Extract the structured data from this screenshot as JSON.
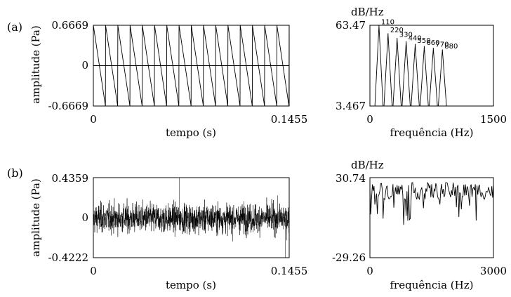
{
  "chart_data": [
    {
      "type": "line",
      "panel_label": "(a)",
      "xlabel": "tempo (s)",
      "ylabel": "amplitude (Pa)",
      "x_ticks": [
        "0",
        "0.1455"
      ],
      "y_ticks": [
        "0.6669",
        "0",
        "-0.6669"
      ],
      "xlim": [
        0,
        0.1455
      ],
      "ylim": [
        -0.6669,
        0.6669
      ],
      "series": [
        {
          "waveform": "sawtooth",
          "fundamental_hz": 110,
          "amplitude": 0.6669,
          "duration_s": 0.1455,
          "zero_line": true
        }
      ]
    },
    {
      "type": "line",
      "panel_label": "",
      "xlabel": "frequência (Hz)",
      "ylabel": "dB/Hz",
      "x_ticks": [
        "0",
        "1500"
      ],
      "y_ticks": [
        "63.47",
        "3.467"
      ],
      "xlim": [
        0,
        1500
      ],
      "ylim": [
        3.467,
        63.47
      ],
      "peak_annotations": [
        "110",
        "220",
        "330",
        "440",
        "550",
        "660",
        "770",
        "880"
      ],
      "series": [
        {
          "peaks_hz": [
            110,
            220,
            330,
            440,
            550,
            660,
            770,
            880
          ],
          "peaks_db": [
            63.2,
            57.2,
            53.7,
            51.2,
            49.3,
            47.7,
            46.4,
            45.2
          ]
        }
      ]
    },
    {
      "type": "line",
      "panel_label": "(b)",
      "xlabel": "tempo (s)",
      "ylabel": "amplitude (Pa)",
      "x_ticks": [
        "0",
        "0.1455"
      ],
      "y_ticks": [
        "0.4359",
        "0",
        "-0.4222"
      ],
      "xlim": [
        0,
        0.1455
      ],
      "ylim": [
        -0.4222,
        0.4359
      ],
      "series": [
        {
          "waveform": "white-noise",
          "max": 0.4359,
          "min": -0.4222,
          "duration_s": 0.1455
        }
      ]
    },
    {
      "type": "line",
      "panel_label": "",
      "xlabel": "frequência (Hz)",
      "ylabel": "dB/Hz",
      "x_ticks": [
        "0",
        "3000"
      ],
      "y_ticks": [
        "30.74",
        "-29.26"
      ],
      "xlim": [
        0,
        3000
      ],
      "ylim": [
        -29.26,
        30.74
      ],
      "series": [
        {
          "spectrum": "flat-noise",
          "mean_db": 22,
          "spread_db": 8
        }
      ]
    }
  ]
}
